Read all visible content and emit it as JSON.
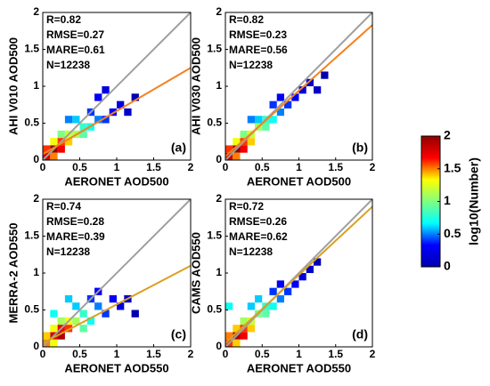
{
  "chart_data": [
    {
      "type": "heatmap",
      "tag": "(a)",
      "xlabel": "AERONET AOD500",
      "ylabel": "AHI V010 AOD500",
      "annotations": [
        "R=0.82",
        "RMSE=0.27",
        "MARE=0.61",
        "N=12238"
      ],
      "xlim": [
        0,
        2
      ],
      "ylim": [
        0,
        2
      ],
      "xticks": [
        0,
        0.5,
        1,
        1.5,
        2
      ],
      "yticks": [
        0,
        0.5,
        1,
        1.5,
        2
      ],
      "x": [
        0.0,
        0.1,
        0.0,
        0.1,
        0.2,
        0.2,
        0.1,
        0.3,
        0.3,
        0.4,
        0.2,
        0.5,
        0.5,
        0.6,
        0.4,
        0.7,
        0.8,
        0.6,
        0.9,
        1.0,
        0.7,
        1.1,
        0.3,
        0.8,
        1.2
      ],
      "y": [
        0.0,
        0.1,
        0.1,
        0.0,
        0.1,
        0.2,
        0.2,
        0.2,
        0.3,
        0.3,
        0.3,
        0.3,
        0.4,
        0.4,
        0.5,
        0.5,
        0.5,
        0.6,
        0.6,
        0.7,
        0.8,
        0.6,
        0.5,
        0.9,
        0.8
      ],
      "values": [
        1.8,
        2.0,
        1.6,
        1.5,
        1.7,
        1.6,
        1.3,
        1.4,
        1.2,
        1.1,
        1.0,
        0.9,
        0.8,
        0.7,
        0.6,
        0.5,
        0.4,
        0.4,
        0.3,
        0.2,
        0.3,
        0.1,
        0.5,
        0.2,
        0.0
      ],
      "reference_line": {
        "x": [
          0,
          2
        ],
        "y": [
          0,
          2
        ],
        "color": "#a0a0a0"
      },
      "fit_line": {
        "x": [
          0,
          2
        ],
        "y": [
          0.08,
          1.25
        ],
        "color": "#f4821f"
      }
    },
    {
      "type": "heatmap",
      "tag": "(b)",
      "xlabel": "AERONET AOD500",
      "ylabel": "AHI V030 AOD500",
      "annotations": [
        "R=0.82",
        "RMSE=0.23",
        "MARE=0.56",
        "N=12238"
      ],
      "xlim": [
        0,
        2
      ],
      "ylim": [
        0,
        2
      ],
      "xticks": [
        0,
        0.5,
        1,
        1.5,
        2
      ],
      "yticks": [
        0,
        0.5,
        1,
        1.5,
        2
      ],
      "x": [
        0.0,
        0.1,
        0.0,
        0.1,
        0.2,
        0.2,
        0.1,
        0.3,
        0.3,
        0.4,
        0.2,
        0.5,
        0.5,
        0.6,
        0.4,
        0.7,
        0.8,
        0.6,
        0.9,
        1.0,
        0.7,
        1.1,
        0.3,
        1.2,
        1.3
      ],
      "y": [
        0.0,
        0.1,
        0.1,
        0.0,
        0.1,
        0.2,
        0.2,
        0.2,
        0.3,
        0.4,
        0.3,
        0.4,
        0.5,
        0.5,
        0.5,
        0.6,
        0.7,
        0.7,
        0.8,
        0.9,
        0.8,
        1.0,
        0.5,
        0.9,
        1.1
      ],
      "values": [
        1.8,
        2.0,
        1.6,
        1.5,
        1.7,
        1.6,
        1.3,
        1.4,
        1.2,
        1.1,
        1.0,
        0.9,
        0.8,
        0.7,
        0.6,
        0.5,
        0.4,
        0.4,
        0.3,
        0.2,
        0.3,
        0.1,
        0.5,
        0.1,
        0.0
      ],
      "reference_line": {
        "x": [
          0,
          2
        ],
        "y": [
          0,
          2
        ],
        "color": "#a0a0a0"
      },
      "fit_line": {
        "x": [
          0,
          2
        ],
        "y": [
          0.05,
          1.83
        ],
        "color": "#f4821f"
      }
    },
    {
      "type": "heatmap",
      "tag": "(c)",
      "xlabel": "AERONET AOD550",
      "ylabel": "MERRA-2 AOD550",
      "annotations": [
        "R=0.74",
        "RMSE=0.28",
        "MARE=0.39",
        "N=12238"
      ],
      "xlim": [
        0,
        2
      ],
      "ylim": [
        0,
        2
      ],
      "xticks": [
        0,
        0.5,
        1,
        1.5,
        2
      ],
      "yticks": [
        0,
        0.5,
        1,
        1.5,
        2
      ],
      "x": [
        0.0,
        0.1,
        0.0,
        0.1,
        0.2,
        0.2,
        0.1,
        0.3,
        0.3,
        0.4,
        0.2,
        0.5,
        0.5,
        0.6,
        0.4,
        0.7,
        0.8,
        0.6,
        0.9,
        1.0,
        0.7,
        1.1,
        0.3,
        1.2,
        0.1
      ],
      "y": [
        0.0,
        0.1,
        0.1,
        0.0,
        0.1,
        0.2,
        0.2,
        0.2,
        0.3,
        0.3,
        0.3,
        0.2,
        0.4,
        0.3,
        0.5,
        0.5,
        0.4,
        0.6,
        0.6,
        0.5,
        0.7,
        0.6,
        0.6,
        0.4,
        0.4
      ],
      "values": [
        1.5,
        1.8,
        1.4,
        1.3,
        1.9,
        1.7,
        1.3,
        1.6,
        1.3,
        1.1,
        1.1,
        0.9,
        0.8,
        0.7,
        0.6,
        0.5,
        0.4,
        0.4,
        0.3,
        0.2,
        0.3,
        0.1,
        0.6,
        0.0,
        0.7
      ],
      "reference_line": {
        "x": [
          0,
          2
        ],
        "y": [
          0,
          2
        ],
        "color": "#a0a0a0"
      },
      "fit_line": {
        "x": [
          0,
          2
        ],
        "y": [
          0.05,
          1.1
        ],
        "color": "#d9a020"
      }
    },
    {
      "type": "heatmap",
      "tag": "(d)",
      "xlabel": "AERONET AOD550",
      "ylabel": "CAMS AOD550",
      "annotations": [
        "R=0.72",
        "RMSE=0.26",
        "MARE=0.62",
        "N=12238"
      ],
      "xlim": [
        0,
        2
      ],
      "ylim": [
        0,
        2
      ],
      "xticks": [
        0,
        0.5,
        1,
        1.5,
        2
      ],
      "yticks": [
        0,
        0.5,
        1,
        1.5,
        2
      ],
      "x": [
        0.0,
        0.1,
        0.0,
        0.1,
        0.2,
        0.2,
        0.1,
        0.3,
        0.3,
        0.4,
        0.2,
        0.5,
        0.5,
        0.6,
        0.4,
        0.7,
        0.8,
        0.6,
        0.9,
        1.0,
        0.7,
        1.1,
        0.3,
        1.2,
        0.0
      ],
      "y": [
        0.0,
        0.1,
        0.1,
        0.0,
        0.1,
        0.2,
        0.2,
        0.2,
        0.3,
        0.4,
        0.3,
        0.4,
        0.5,
        0.5,
        0.6,
        0.6,
        0.7,
        0.7,
        0.8,
        0.9,
        0.8,
        1.0,
        0.5,
        1.1,
        0.5
      ],
      "values": [
        1.6,
        1.9,
        1.5,
        1.4,
        1.7,
        1.6,
        1.4,
        1.4,
        1.2,
        1.0,
        1.1,
        0.9,
        0.8,
        0.7,
        0.6,
        0.5,
        0.4,
        0.4,
        0.3,
        0.2,
        0.3,
        0.1,
        0.6,
        0.0,
        0.7
      ],
      "reference_line": {
        "x": [
          0,
          2
        ],
        "y": [
          0,
          2
        ],
        "color": "#a0a0a0"
      },
      "fit_line": {
        "x": [
          0,
          2
        ],
        "y": [
          0.05,
          1.9
        ],
        "color": "#d9a020"
      }
    }
  ],
  "colorbar": {
    "label": "log10(Number)",
    "lim": [
      0,
      2
    ],
    "ticks": [
      0,
      0.5,
      1,
      1.5,
      2
    ],
    "colormap": [
      "#0000b0",
      "#0000ff",
      "#00ffff",
      "#80ff80",
      "#ffff00",
      "#ff0000",
      "#900000"
    ]
  }
}
